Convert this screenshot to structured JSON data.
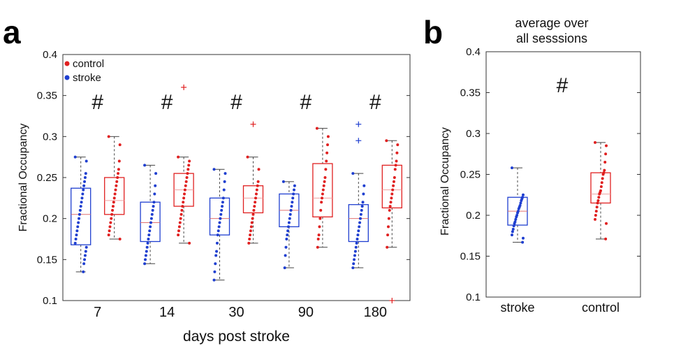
{
  "panels": {
    "a": {
      "letter": "a"
    },
    "b": {
      "letter": "b",
      "title_lines": [
        "average over",
        "all sesssions"
      ]
    }
  },
  "chart_data": [
    {
      "id": "a",
      "type": "box",
      "title": "",
      "xlabel": "days post stroke",
      "ylabel": "Fractional Occupancy",
      "ylim": [
        0.1,
        0.4
      ],
      "yticks": [
        "0.1",
        "0.15",
        "0.2",
        "0.25",
        "0.3",
        "0.35",
        "0.4"
      ],
      "categories": [
        "7",
        "14",
        "30",
        "90",
        "180"
      ],
      "legend": {
        "position": "top-left",
        "entries": [
          {
            "name": "control",
            "color": "#e02020"
          },
          {
            "name": "stroke",
            "color": "#1f3fd0"
          }
        ]
      },
      "annotations": [
        "#",
        "#",
        "#",
        "#",
        "#"
      ],
      "colors": {
        "stroke": "#1f3fd0",
        "control": "#e02020",
        "median_stroke": "#e07070",
        "median_control": "#f0a0a0"
      },
      "series": [
        {
          "name": "stroke",
          "boxes": [
            {
              "min": 0.135,
              "q1": 0.168,
              "median": 0.205,
              "q3": 0.237,
              "max": 0.275,
              "outliers": [],
              "points": [
                0.275,
                0.27,
                0.255,
                0.25,
                0.245,
                0.24,
                0.235,
                0.23,
                0.225,
                0.22,
                0.215,
                0.21,
                0.205,
                0.2,
                0.195,
                0.19,
                0.185,
                0.18,
                0.175,
                0.17,
                0.165,
                0.16,
                0.155,
                0.15,
                0.145,
                0.135
              ]
            },
            {
              "min": 0.145,
              "q1": 0.172,
              "median": 0.195,
              "q3": 0.22,
              "max": 0.265,
              "outliers": [],
              "points": [
                0.265,
                0.255,
                0.24,
                0.23,
                0.22,
                0.215,
                0.21,
                0.205,
                0.2,
                0.195,
                0.19,
                0.185,
                0.18,
                0.175,
                0.17,
                0.165,
                0.16,
                0.155,
                0.15,
                0.145
              ]
            },
            {
              "min": 0.125,
              "q1": 0.18,
              "median": 0.2,
              "q3": 0.225,
              "max": 0.26,
              "outliers": [],
              "points": [
                0.26,
                0.255,
                0.245,
                0.235,
                0.225,
                0.22,
                0.215,
                0.21,
                0.205,
                0.2,
                0.195,
                0.19,
                0.185,
                0.18,
                0.17,
                0.16,
                0.155,
                0.145,
                0.135,
                0.125
              ]
            },
            {
              "min": 0.14,
              "q1": 0.19,
              "median": 0.21,
              "q3": 0.23,
              "max": 0.245,
              "outliers": [],
              "points": [
                0.245,
                0.24,
                0.235,
                0.23,
                0.225,
                0.22,
                0.215,
                0.21,
                0.205,
                0.2,
                0.195,
                0.19,
                0.185,
                0.18,
                0.175,
                0.165,
                0.155,
                0.14
              ]
            },
            {
              "min": 0.14,
              "q1": 0.172,
              "median": 0.2,
              "q3": 0.217,
              "max": 0.255,
              "outliers": [
                0.315,
                0.295
              ],
              "points": [
                0.255,
                0.24,
                0.23,
                0.22,
                0.215,
                0.21,
                0.205,
                0.2,
                0.195,
                0.19,
                0.185,
                0.18,
                0.175,
                0.17,
                0.165,
                0.16,
                0.155,
                0.15,
                0.145,
                0.14
              ]
            }
          ]
        },
        {
          "name": "control",
          "boxes": [
            {
              "min": 0.175,
              "q1": 0.205,
              "median": 0.222,
              "q3": 0.25,
              "max": 0.3,
              "outliers": [],
              "points": [
                0.3,
                0.29,
                0.27,
                0.26,
                0.255,
                0.25,
                0.245,
                0.24,
                0.235,
                0.23,
                0.225,
                0.22,
                0.215,
                0.21,
                0.205,
                0.2,
                0.195,
                0.19,
                0.185,
                0.18,
                0.175
              ]
            },
            {
              "min": 0.17,
              "q1": 0.215,
              "median": 0.235,
              "q3": 0.255,
              "max": 0.275,
              "outliers": [
                0.36
              ],
              "points": [
                0.275,
                0.27,
                0.265,
                0.26,
                0.255,
                0.25,
                0.245,
                0.24,
                0.235,
                0.23,
                0.225,
                0.22,
                0.215,
                0.21,
                0.205,
                0.2,
                0.195,
                0.19,
                0.185,
                0.18,
                0.17
              ]
            },
            {
              "min": 0.17,
              "q1": 0.207,
              "median": 0.225,
              "q3": 0.24,
              "max": 0.275,
              "outliers": [
                0.315
              ],
              "points": [
                0.275,
                0.26,
                0.245,
                0.24,
                0.235,
                0.23,
                0.225,
                0.22,
                0.215,
                0.21,
                0.205,
                0.2,
                0.195,
                0.19,
                0.185,
                0.18,
                0.175,
                0.17
              ]
            },
            {
              "min": 0.165,
              "q1": 0.202,
              "median": 0.225,
              "q3": 0.267,
              "max": 0.31,
              "outliers": [],
              "points": [
                0.31,
                0.3,
                0.29,
                0.28,
                0.27,
                0.26,
                0.25,
                0.245,
                0.24,
                0.235,
                0.23,
                0.225,
                0.22,
                0.21,
                0.2,
                0.19,
                0.18,
                0.175,
                0.165
              ]
            },
            {
              "min": 0.165,
              "q1": 0.213,
              "median": 0.235,
              "q3": 0.265,
              "max": 0.295,
              "outliers": [
                0.1
              ],
              "points": [
                0.295,
                0.29,
                0.28,
                0.27,
                0.265,
                0.26,
                0.25,
                0.245,
                0.24,
                0.235,
                0.23,
                0.225,
                0.22,
                0.215,
                0.21,
                0.2,
                0.19,
                0.18,
                0.165
              ]
            }
          ]
        }
      ]
    },
    {
      "id": "b",
      "type": "box",
      "title": "average over all sesssions",
      "xlabel": "",
      "ylabel": "Fractional Occupancy",
      "ylim": [
        0.1,
        0.4
      ],
      "yticks": [
        "0.1",
        "0.15",
        "0.2",
        "0.25",
        "0.3",
        "0.35",
        "0.4"
      ],
      "categories": [
        "stroke",
        "control"
      ],
      "annotations": [
        "#"
      ],
      "series": [
        {
          "name": "stroke",
          "color": "#1f3fd0",
          "box": {
            "min": 0.167,
            "q1": 0.188,
            "median": 0.205,
            "q3": 0.222,
            "max": 0.258,
            "outliers": []
          },
          "points": [
            0.258,
            0.225,
            0.222,
            0.22,
            0.218,
            0.215,
            0.212,
            0.21,
            0.208,
            0.205,
            0.203,
            0.2,
            0.198,
            0.195,
            0.192,
            0.19,
            0.187,
            0.183,
            0.18,
            0.176,
            0.172,
            0.167
          ]
        },
        {
          "name": "control",
          "color": "#e02020",
          "box": {
            "min": 0.171,
            "q1": 0.215,
            "median": 0.226,
            "q3": 0.252,
            "max": 0.289,
            "outliers": []
          },
          "points": [
            0.289,
            0.285,
            0.275,
            0.265,
            0.255,
            0.252,
            0.25,
            0.245,
            0.24,
            0.235,
            0.23,
            0.228,
            0.226,
            0.222,
            0.218,
            0.215,
            0.21,
            0.205,
            0.2,
            0.195,
            0.19,
            0.171
          ]
        }
      ]
    }
  ]
}
